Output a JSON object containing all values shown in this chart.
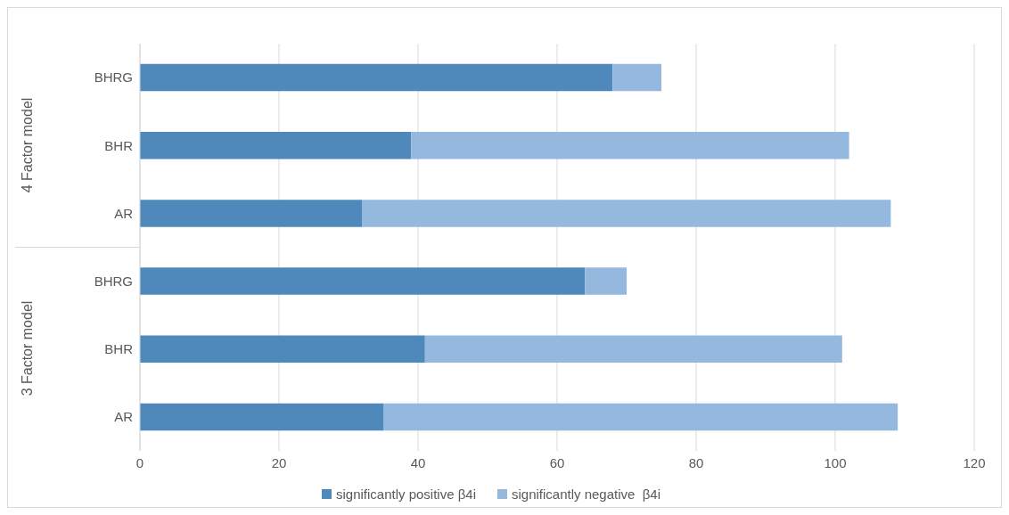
{
  "chart_data": {
    "type": "bar",
    "orientation": "horizontal",
    "stacked": true,
    "categories": [
      "BHRG",
      "BHR",
      "AR",
      "BHRG",
      "BHR",
      "AR"
    ],
    "series": [
      {
        "name": "significantly positive β4i",
        "color": "#4f88bb",
        "values": [
          68,
          39,
          32,
          64,
          41,
          35
        ]
      },
      {
        "name": "significantly negative  β4i",
        "color": "#95b8df",
        "values": [
          7,
          63,
          76,
          6,
          60,
          74
        ]
      }
    ],
    "annotations": [
      "4 Factor model",
      "3 Factor model"
    ],
    "xlim": [
      0,
      120
    ],
    "xticks": [
      0,
      20,
      40,
      60,
      80,
      100,
      120
    ],
    "grid": "x",
    "legend": "bottom"
  }
}
